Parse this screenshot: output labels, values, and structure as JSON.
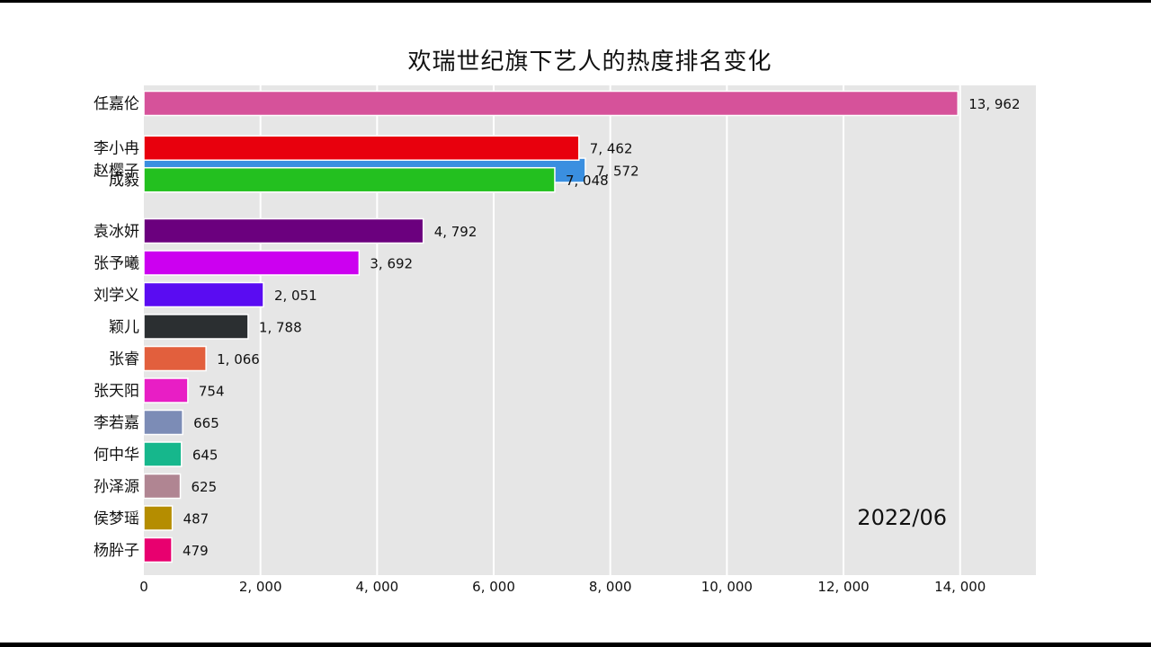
{
  "chart_data": {
    "type": "bar",
    "orientation": "horizontal",
    "title": "欢瑞世纪旗下艺人的热度排名变化",
    "period": "2022/06",
    "xlim": [
      0,
      15300
    ],
    "grid": true,
    "x_ticks": [
      {
        "value": 0,
        "label": "0"
      },
      {
        "value": 2000,
        "label": "2, 000"
      },
      {
        "value": 4000,
        "label": "4, 000"
      },
      {
        "value": 6000,
        "label": "6, 000"
      },
      {
        "value": 8000,
        "label": "8, 000"
      },
      {
        "value": 10000,
        "label": "10, 000"
      },
      {
        "value": 12000,
        "label": "12, 000"
      },
      {
        "value": 14000,
        "label": "14, 000"
      }
    ],
    "bars": [
      {
        "category": "任嘉伦",
        "value": 13962,
        "value_label": "13, 962",
        "rank": 1,
        "color": "#d6529a"
      },
      {
        "category": "赵樱子",
        "value": 7572,
        "value_label": "7, 572",
        "rank": 3.1,
        "color": "#3a8fe0"
      },
      {
        "category": "李小冉",
        "value": 7462,
        "value_label": "7, 462",
        "rank": 2.4,
        "color": "#e8000d"
      },
      {
        "category": "成毅",
        "value": 7048,
        "value_label": "7, 048",
        "rank": 3.4,
        "color": "#23c01f"
      },
      {
        "category": "袁冰妍",
        "value": 4792,
        "value_label": "4, 792",
        "rank": 5,
        "color": "#6b007e"
      },
      {
        "category": "张予曦",
        "value": 3692,
        "value_label": "3, 692",
        "rank": 6,
        "color": "#cc00f0"
      },
      {
        "category": "刘学义",
        "value": 2051,
        "value_label": "2, 051",
        "rank": 7,
        "color": "#5a0cf2"
      },
      {
        "category": "颖儿",
        "value": 1788,
        "value_label": "1, 788",
        "rank": 8,
        "color": "#2b2f31"
      },
      {
        "category": "张睿",
        "value": 1066,
        "value_label": "1, 066",
        "rank": 9,
        "color": "#e25f3d"
      },
      {
        "category": "张天阳",
        "value": 754,
        "value_label": "754",
        "rank": 10,
        "color": "#e81ec5"
      },
      {
        "category": "李若嘉",
        "value": 665,
        "value_label": "665",
        "rank": 11,
        "color": "#7c8cb6"
      },
      {
        "category": "何中华",
        "value": 645,
        "value_label": "645",
        "rank": 12,
        "color": "#16b78c"
      },
      {
        "category": "孙泽源",
        "value": 625,
        "value_label": "625",
        "rank": 13,
        "color": "#b08592"
      },
      {
        "category": "侯梦瑶",
        "value": 487,
        "value_label": "487",
        "rank": 14,
        "color": "#b58d00"
      },
      {
        "category": "杨肸子",
        "value": 479,
        "value_label": "479",
        "rank": 15,
        "color": "#e8006f"
      }
    ]
  }
}
